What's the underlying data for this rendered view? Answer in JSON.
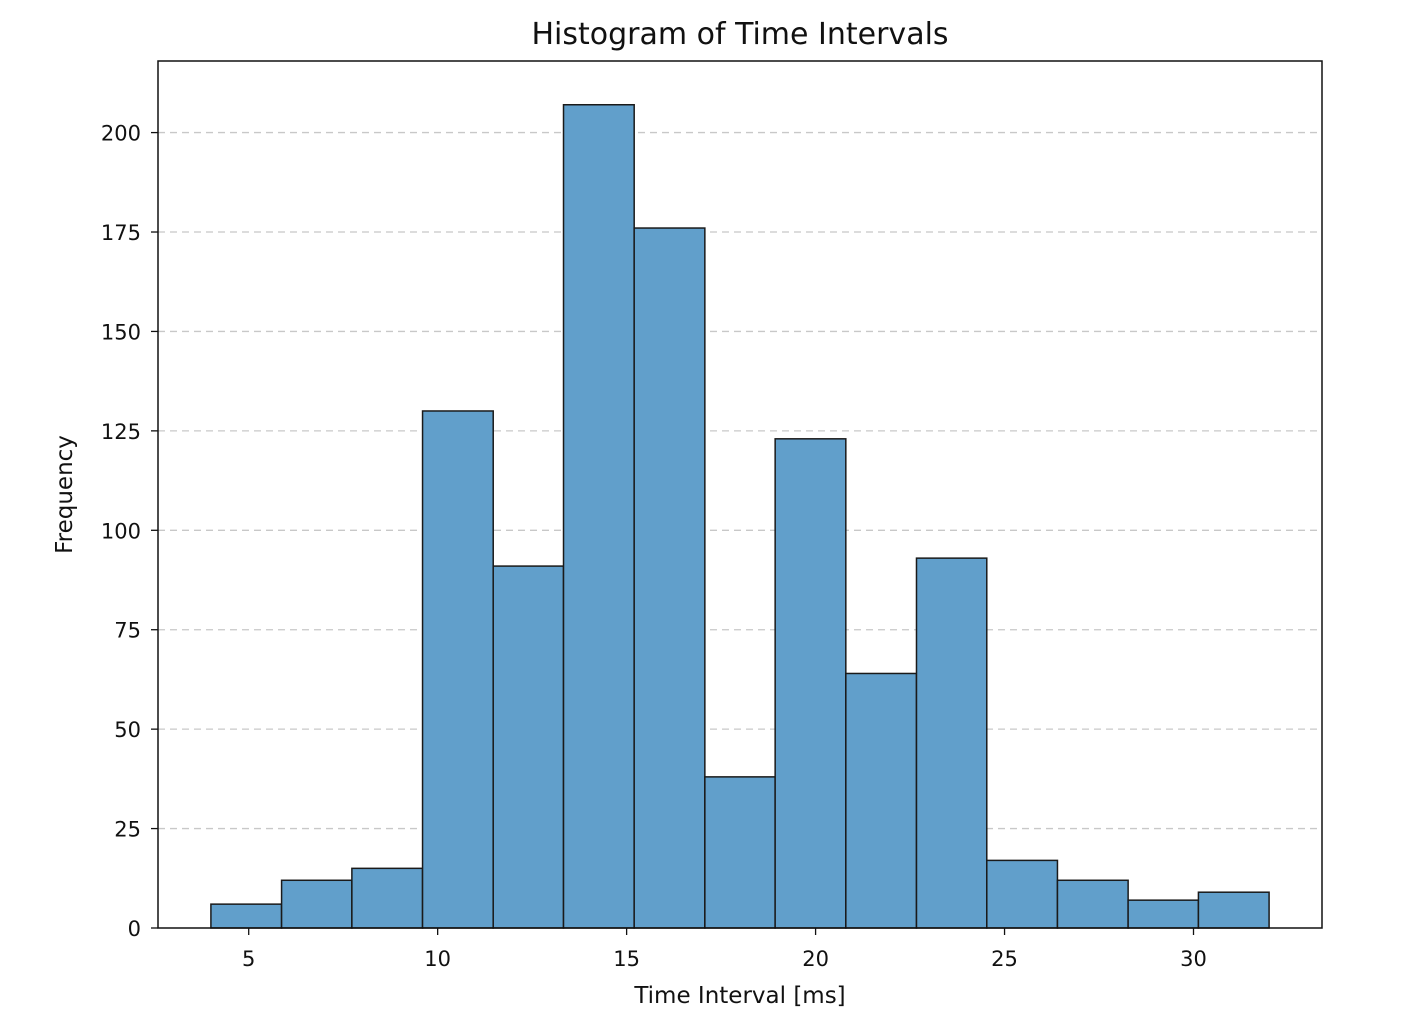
{
  "chart_data": {
    "type": "bar",
    "title": "Histogram of Time Intervals",
    "xlabel": "Time Interval [ms]",
    "ylabel": "Frequency",
    "xlim": [
      2.6,
      33.4
    ],
    "ylim": [
      0,
      218
    ],
    "x_ticks": [
      5,
      10,
      15,
      20,
      25,
      30
    ],
    "y_ticks": [
      0,
      25,
      50,
      75,
      100,
      125,
      150,
      175,
      200
    ],
    "grid": "y-dashed",
    "bar_color": "#619fcb",
    "edge_color": "#1a1a1a",
    "bin_edges": [
      4.0,
      5.87,
      7.73,
      9.6,
      11.47,
      13.33,
      15.2,
      17.07,
      18.93,
      20.8,
      22.67,
      24.53,
      26.4,
      28.27,
      30.13,
      32.0
    ],
    "values": [
      6,
      12,
      15,
      130,
      91,
      207,
      176,
      38,
      123,
      64,
      93,
      17,
      12,
      7,
      9
    ]
  }
}
